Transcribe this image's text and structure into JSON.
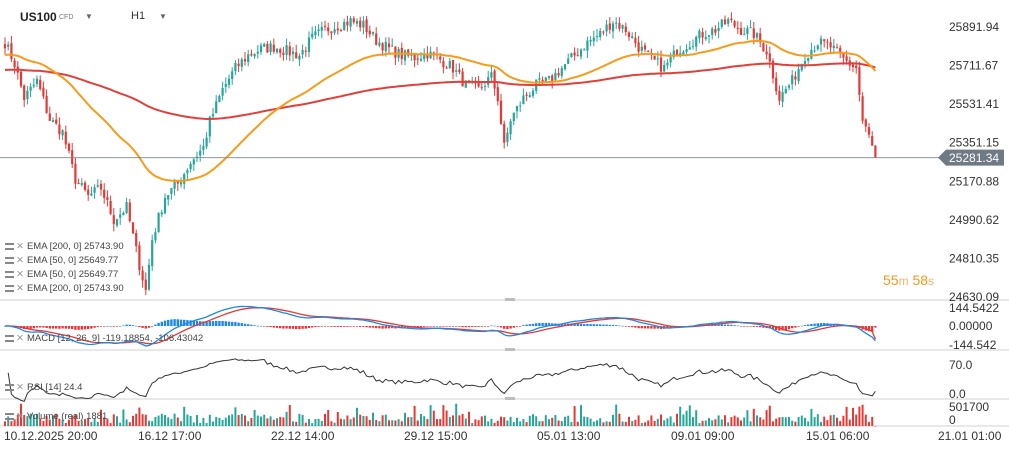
{
  "header": {
    "symbol": "US100",
    "instrument_type": "CFD",
    "timeframe": "H1"
  },
  "countdown": {
    "minutes": "55",
    "minutes_unit": "m",
    "seconds": "58",
    "seconds_unit": "s"
  },
  "legend": {
    "items": [
      "EMA  [200, 0]  25743.90",
      "EMA  [50, 0]  25649.77",
      "EMA  [50, 0]  25649.77",
      "EMA  [200, 0]  25743.90"
    ],
    "macd": "MACD  [12, 26, 9]  -119.18854,  -106.43042",
    "rsi": "RSI  [14]  24.4",
    "volume": "Volume  (real)  1881"
  },
  "colors": {
    "up": "#26a69a",
    "down": "#e53935",
    "ema50": "#f59c1a",
    "ema200": "#e0403a",
    "macd_line": "#1e88e5",
    "signal_line": "#e53935",
    "rsi_line": "#333333",
    "price_tag": "#6f7a84"
  },
  "chart_data": [
    {
      "type": "candlestick",
      "title": "US100",
      "y_ticks": [
        "25891.94",
        "25711.67",
        "25531.41",
        "25351.15",
        "25170.88",
        "24990.62",
        "24810.35",
        "24630.09"
      ],
      "ylim": [
        24630.09,
        25981.0
      ],
      "current_price": "25281.34",
      "x_ticks": [
        "10.12.2025  20:00",
        "16.12  17:00",
        "22.12  14:00",
        "29.12  15:00",
        "05.01  13:00",
        "09.01  09:00",
        "15.01  06:00",
        "21.01  01:00"
      ],
      "series": [
        {
          "name": "EMA [50, 0]",
          "last": 25649.77
        },
        {
          "name": "EMA [200, 0]",
          "last": 25743.9
        }
      ],
      "anchors": [
        [
          0,
          25820
        ],
        [
          3,
          25720
        ],
        [
          6,
          25560
        ],
        [
          10,
          25640
        ],
        [
          14,
          25460
        ],
        [
          18,
          25400
        ],
        [
          22,
          25180
        ],
        [
          26,
          25100
        ],
        [
          30,
          25140
        ],
        [
          34,
          24990
        ],
        [
          38,
          25050
        ],
        [
          42,
          24780
        ],
        [
          44,
          24660
        ],
        [
          46,
          24900
        ],
        [
          50,
          25100
        ],
        [
          54,
          25160
        ],
        [
          58,
          25260
        ],
        [
          62,
          25330
        ],
        [
          64,
          25450
        ],
        [
          68,
          25600
        ],
        [
          72,
          25700
        ],
        [
          76,
          25760
        ],
        [
          80,
          25790
        ],
        [
          84,
          25800
        ],
        [
          88,
          25780
        ],
        [
          92,
          25760
        ],
        [
          96,
          25840
        ],
        [
          100,
          25880
        ],
        [
          104,
          25900
        ],
        [
          108,
          25920
        ],
        [
          112,
          25900
        ],
        [
          116,
          25830
        ],
        [
          120,
          25790
        ],
        [
          124,
          25760
        ],
        [
          128,
          25750
        ],
        [
          132,
          25770
        ],
        [
          136,
          25740
        ],
        [
          140,
          25700
        ],
        [
          144,
          25620
        ],
        [
          148,
          25600
        ],
        [
          152,
          25660
        ],
        [
          154,
          25560
        ],
        [
          156,
          25330
        ],
        [
          158,
          25460
        ],
        [
          162,
          25560
        ],
        [
          166,
          25620
        ],
        [
          170,
          25640
        ],
        [
          174,
          25700
        ],
        [
          178,
          25760
        ],
        [
          182,
          25820
        ],
        [
          186,
          25860
        ],
        [
          190,
          25920
        ],
        [
          194,
          25880
        ],
        [
          198,
          25800
        ],
        [
          202,
          25740
        ],
        [
          206,
          25700
        ],
        [
          210,
          25780
        ],
        [
          214,
          25820
        ],
        [
          218,
          25860
        ],
        [
          222,
          25880
        ],
        [
          226,
          25920
        ],
        [
          230,
          25880
        ],
        [
          234,
          25860
        ],
        [
          238,
          25780
        ],
        [
          242,
          25560
        ],
        [
          246,
          25640
        ],
        [
          250,
          25760
        ],
        [
          254,
          25820
        ],
        [
          258,
          25800
        ],
        [
          262,
          25740
        ],
        [
          266,
          25700
        ],
        [
          268,
          25450
        ],
        [
          270,
          25380
        ],
        [
          272,
          25281
        ]
      ]
    },
    {
      "type": "line",
      "title": "MACD [12, 26, 9]",
      "y_ticks": [
        "144.5422",
        "0.00000",
        "-144.542"
      ],
      "ylim": [
        -144.542,
        144.5422
      ],
      "series": [
        {
          "name": "MACD",
          "last": -119.18854
        },
        {
          "name": "Signal",
          "last": -106.43042
        }
      ]
    },
    {
      "type": "line",
      "title": "RSI [14]",
      "y_ticks": [
        "70.0",
        "0.0"
      ],
      "ylim": [
        0,
        100
      ],
      "series": [
        {
          "name": "RSI",
          "last": 24.4
        }
      ]
    },
    {
      "type": "bar",
      "title": "Volume (real)",
      "y_ticks": [
        "501700",
        "0"
      ],
      "ylim": [
        0,
        501700
      ],
      "series": [
        {
          "name": "Volume",
          "last": 1881
        }
      ]
    }
  ]
}
